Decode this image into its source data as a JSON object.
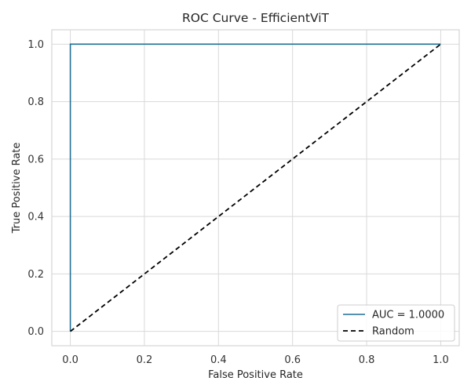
{
  "chart_data": {
    "type": "line",
    "title": "ROC Curve - EfficientViT",
    "xlabel": "False Positive Rate",
    "ylabel": "True Positive Rate",
    "xlim": [
      -0.05,
      1.05
    ],
    "ylim": [
      -0.05,
      1.05
    ],
    "xticks": [
      0.0,
      0.2,
      0.4,
      0.6,
      0.8,
      1.0
    ],
    "yticks": [
      0.0,
      0.2,
      0.4,
      0.6,
      0.8,
      1.0
    ],
    "xtick_labels": [
      "0.0",
      "0.2",
      "0.4",
      "0.6",
      "0.8",
      "1.0"
    ],
    "ytick_labels": [
      "0.0",
      "0.2",
      "0.4",
      "0.6",
      "0.8",
      "1.0"
    ],
    "grid": true,
    "legend_position": "bottom-right",
    "series": [
      {
        "name": "AUC = 1.0000",
        "style": "solid",
        "color": "#1f6f95",
        "x": [
          0.0,
          0.0,
          1.0
        ],
        "y": [
          0.0,
          1.0,
          1.0
        ]
      },
      {
        "name": "Random",
        "style": "dashed",
        "color": "#000000",
        "x": [
          0.0,
          1.0
        ],
        "y": [
          0.0,
          1.0
        ]
      }
    ]
  }
}
